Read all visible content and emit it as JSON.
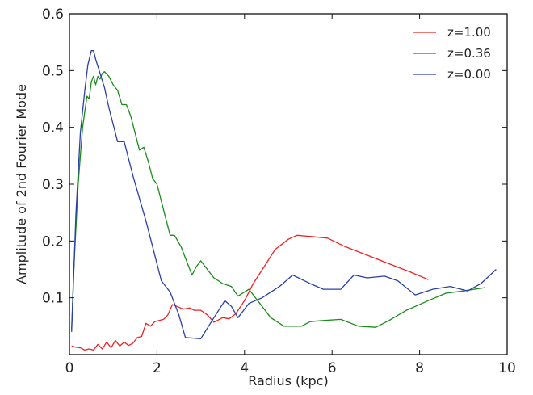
{
  "chart_data": {
    "type": "line",
    "title": "",
    "xlabel": "Radius (kpc)",
    "ylabel": "Amplitude of 2nd Fourier Mode",
    "xlim": [
      0,
      10
    ],
    "ylim": [
      0,
      0.6
    ],
    "xticks": [
      0,
      2,
      4,
      6,
      8,
      10
    ],
    "xtick_labels": [
      "0",
      "2",
      "4",
      "6",
      "8",
      "10"
    ],
    "yticks": [
      0.1,
      0.2,
      0.3,
      0.4,
      0.5,
      0.6
    ],
    "ytick_labels": [
      "0.1",
      "0.2",
      "0.3",
      "0.4",
      "0.5",
      "0.6"
    ],
    "grid": false,
    "legend_position": "top-right",
    "series": [
      {
        "name": "z=1.00",
        "color": "#ee2222",
        "points": [
          [
            0.05,
            0.015
          ],
          [
            0.15,
            0.013
          ],
          [
            0.25,
            0.012
          ],
          [
            0.35,
            0.008
          ],
          [
            0.45,
            0.01
          ],
          [
            0.55,
            0.008
          ],
          [
            0.65,
            0.018
          ],
          [
            0.75,
            0.01
          ],
          [
            0.85,
            0.022
          ],
          [
            0.95,
            0.012
          ],
          [
            1.05,
            0.025
          ],
          [
            1.15,
            0.015
          ],
          [
            1.25,
            0.022
          ],
          [
            1.35,
            0.016
          ],
          [
            1.45,
            0.02
          ],
          [
            1.55,
            0.03
          ],
          [
            1.65,
            0.032
          ],
          [
            1.75,
            0.055
          ],
          [
            1.85,
            0.05
          ],
          [
            1.95,
            0.058
          ],
          [
            2.05,
            0.06
          ],
          [
            2.15,
            0.062
          ],
          [
            2.25,
            0.07
          ],
          [
            2.35,
            0.088
          ],
          [
            2.45,
            0.085
          ],
          [
            2.6,
            0.08
          ],
          [
            2.75,
            0.082
          ],
          [
            2.85,
            0.078
          ],
          [
            3.0,
            0.078
          ],
          [
            3.15,
            0.07
          ],
          [
            3.3,
            0.057
          ],
          [
            3.5,
            0.065
          ],
          [
            3.65,
            0.063
          ],
          [
            3.8,
            0.072
          ],
          [
            4.0,
            0.095
          ],
          [
            4.2,
            0.125
          ],
          [
            4.45,
            0.155
          ],
          [
            4.7,
            0.185
          ],
          [
            5.0,
            0.203
          ],
          [
            5.2,
            0.21
          ],
          [
            5.5,
            0.208
          ],
          [
            5.9,
            0.205
          ],
          [
            6.3,
            0.19
          ],
          [
            6.8,
            0.175
          ],
          [
            7.3,
            0.16
          ],
          [
            7.8,
            0.145
          ],
          [
            8.2,
            0.132
          ]
        ]
      },
      {
        "name": "z=0.36",
        "color": "#1a8c1a",
        "points": [
          [
            0.05,
            0.045
          ],
          [
            0.1,
            0.15
          ],
          [
            0.2,
            0.3
          ],
          [
            0.3,
            0.4
          ],
          [
            0.4,
            0.455
          ],
          [
            0.45,
            0.45
          ],
          [
            0.5,
            0.48
          ],
          [
            0.55,
            0.49
          ],
          [
            0.6,
            0.475
          ],
          [
            0.65,
            0.49
          ],
          [
            0.7,
            0.485
          ],
          [
            0.75,
            0.495
          ],
          [
            0.8,
            0.498
          ],
          [
            0.9,
            0.49
          ],
          [
            1.0,
            0.475
          ],
          [
            1.1,
            0.465
          ],
          [
            1.2,
            0.44
          ],
          [
            1.3,
            0.44
          ],
          [
            1.4,
            0.42
          ],
          [
            1.5,
            0.39
          ],
          [
            1.6,
            0.36
          ],
          [
            1.7,
            0.365
          ],
          [
            1.8,
            0.34
          ],
          [
            1.9,
            0.31
          ],
          [
            2.0,
            0.3
          ],
          [
            2.1,
            0.27
          ],
          [
            2.2,
            0.24
          ],
          [
            2.3,
            0.21
          ],
          [
            2.4,
            0.21
          ],
          [
            2.55,
            0.19
          ],
          [
            2.7,
            0.16
          ],
          [
            2.8,
            0.14
          ],
          [
            2.9,
            0.155
          ],
          [
            3.0,
            0.165
          ],
          [
            3.15,
            0.15
          ],
          [
            3.3,
            0.135
          ],
          [
            3.5,
            0.125
          ],
          [
            3.7,
            0.12
          ],
          [
            3.85,
            0.103
          ],
          [
            4.1,
            0.115
          ],
          [
            4.35,
            0.09
          ],
          [
            4.6,
            0.065
          ],
          [
            4.9,
            0.05
          ],
          [
            5.3,
            0.05
          ],
          [
            5.5,
            0.058
          ],
          [
            5.8,
            0.06
          ],
          [
            6.2,
            0.062
          ],
          [
            6.6,
            0.05
          ],
          [
            7.0,
            0.048
          ],
          [
            7.3,
            0.06
          ],
          [
            7.7,
            0.078
          ],
          [
            8.2,
            0.095
          ],
          [
            8.6,
            0.108
          ],
          [
            9.0,
            0.112
          ],
          [
            9.5,
            0.118
          ]
        ]
      },
      {
        "name": "z=0.00",
        "color": "#2b3fa8",
        "points": [
          [
            0.05,
            0.04
          ],
          [
            0.15,
            0.25
          ],
          [
            0.25,
            0.39
          ],
          [
            0.35,
            0.465
          ],
          [
            0.42,
            0.51
          ],
          [
            0.5,
            0.535
          ],
          [
            0.55,
            0.535
          ],
          [
            0.6,
            0.52
          ],
          [
            0.7,
            0.495
          ],
          [
            0.8,
            0.47
          ],
          [
            0.9,
            0.435
          ],
          [
            1.0,
            0.405
          ],
          [
            1.1,
            0.375
          ],
          [
            1.25,
            0.375
          ],
          [
            1.35,
            0.345
          ],
          [
            1.45,
            0.315
          ],
          [
            1.6,
            0.275
          ],
          [
            1.75,
            0.235
          ],
          [
            1.9,
            0.19
          ],
          [
            2.0,
            0.16
          ],
          [
            2.1,
            0.13
          ],
          [
            2.3,
            0.11
          ],
          [
            2.5,
            0.07
          ],
          [
            2.65,
            0.03
          ],
          [
            3.0,
            0.028
          ],
          [
            3.3,
            0.065
          ],
          [
            3.55,
            0.095
          ],
          [
            3.7,
            0.085
          ],
          [
            3.85,
            0.065
          ],
          [
            4.1,
            0.09
          ],
          [
            4.4,
            0.1
          ],
          [
            4.8,
            0.12
          ],
          [
            5.1,
            0.14
          ],
          [
            5.5,
            0.125
          ],
          [
            5.8,
            0.115
          ],
          [
            6.2,
            0.115
          ],
          [
            6.5,
            0.14
          ],
          [
            6.8,
            0.135
          ],
          [
            7.2,
            0.138
          ],
          [
            7.5,
            0.13
          ],
          [
            7.9,
            0.105
          ],
          [
            8.3,
            0.115
          ],
          [
            8.7,
            0.12
          ],
          [
            9.1,
            0.112
          ],
          [
            9.4,
            0.125
          ],
          [
            9.75,
            0.15
          ]
        ]
      }
    ]
  }
}
